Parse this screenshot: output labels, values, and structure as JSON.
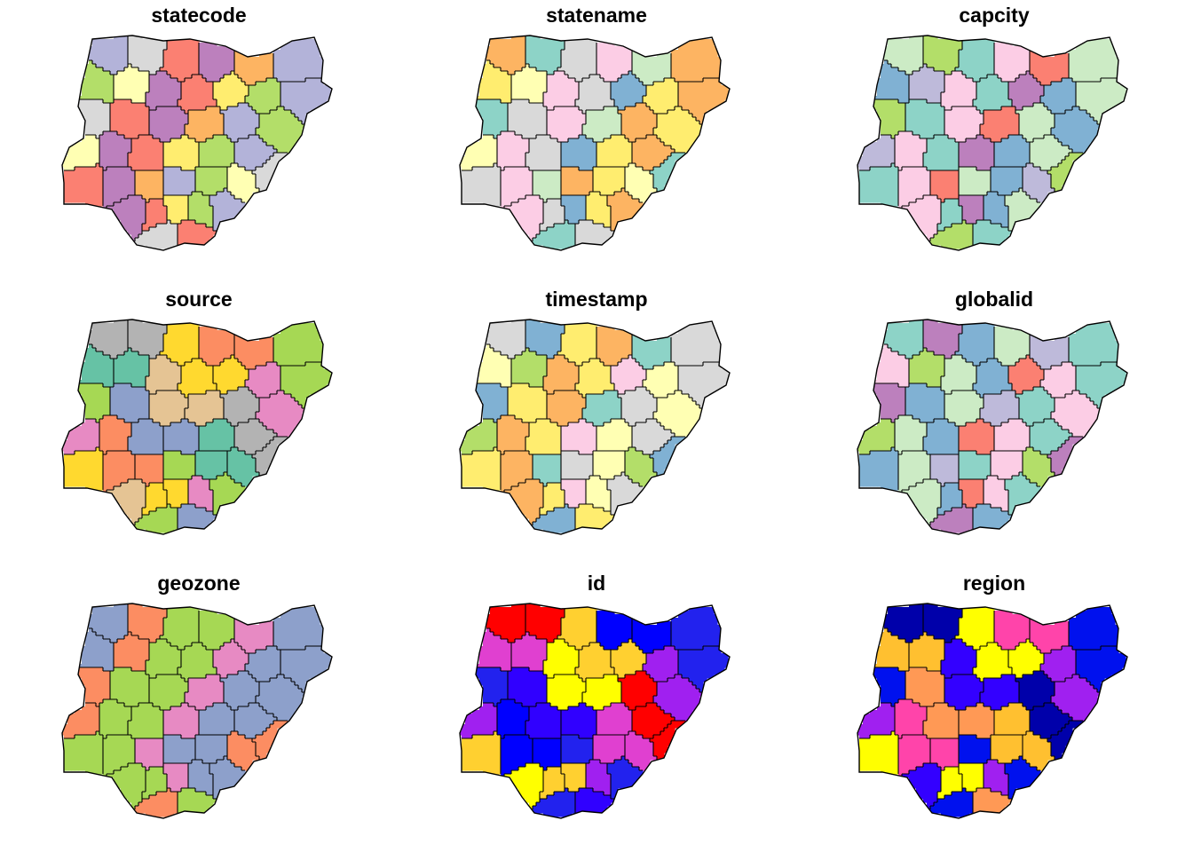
{
  "figure": {
    "panels": [
      {
        "title": "statecode",
        "palette": [
          "#b3b3d9",
          "#8dd3c7",
          "#ffffb3",
          "#fb8072",
          "#80b1d3",
          "#fdb462",
          "#b3de69",
          "#fccde5",
          "#d9d9d9",
          "#bc80bd",
          "#ccebc5",
          "#ffed6f"
        ]
      },
      {
        "title": "statename",
        "palette": [
          "#bc80bd",
          "#8dd3c7",
          "#fccde5",
          "#fb8072",
          "#80b1d3",
          "#fdb462",
          "#b3de69",
          "#ffffb3",
          "#d9d9d9",
          "#bebada",
          "#ccebc5",
          "#ffed6f"
        ]
      },
      {
        "title": "capcity",
        "palette": [
          "#bebada",
          "#8dd3c7",
          "#ffffb3",
          "#fb8072",
          "#80b1d3",
          "#fdb462",
          "#b3de69",
          "#fccde5",
          "#d9d9d9",
          "#bc80bd",
          "#ccebc5",
          "#ffed6f"
        ]
      },
      {
        "title": "source",
        "palette": [
          "#e5c494",
          "#66c2a5",
          "#8da0cb",
          "#a6d854",
          "#fc8d62",
          "#e78ac3",
          "#ffd92f",
          "#b3b3b3"
        ]
      },
      {
        "title": "timestamp",
        "palette": [
          "#ccebc5",
          "#8dd3c7",
          "#ffffb3",
          "#fb8072",
          "#80b1d3",
          "#fdb462",
          "#bebada",
          "#fccde5",
          "#d9d9d9",
          "#bc80bd",
          "#b3de69",
          "#ffed6f"
        ]
      },
      {
        "title": "globalid",
        "palette": [
          "#fb8072",
          "#8dd3c7",
          "#ffffb3",
          "#b3de69",
          "#80b1d3",
          "#fdb462",
          "#bebada",
          "#fccde5",
          "#d9d9d9",
          "#bc80bd",
          "#ccebc5",
          "#ffed6f"
        ]
      },
      {
        "title": "geozone",
        "palette": [
          "#8da0cb",
          "#66c2a5",
          "#fc8d62",
          "#a6d854",
          "#ffd92f",
          "#e78ac3"
        ]
      },
      {
        "title": "id",
        "palette": [
          "#0000ff",
          "#a020f0",
          "#ffd030",
          "#ff0000",
          "#ffff00",
          "#e040d0",
          "#3000ff",
          "#2222ee"
        ]
      },
      {
        "title": "region",
        "palette": [
          "#0000aa",
          "#3300ff",
          "#ffc030",
          "#ff9955",
          "#0011ee",
          "#ff44aa",
          "#a020f0",
          "#ffff00"
        ]
      }
    ]
  }
}
